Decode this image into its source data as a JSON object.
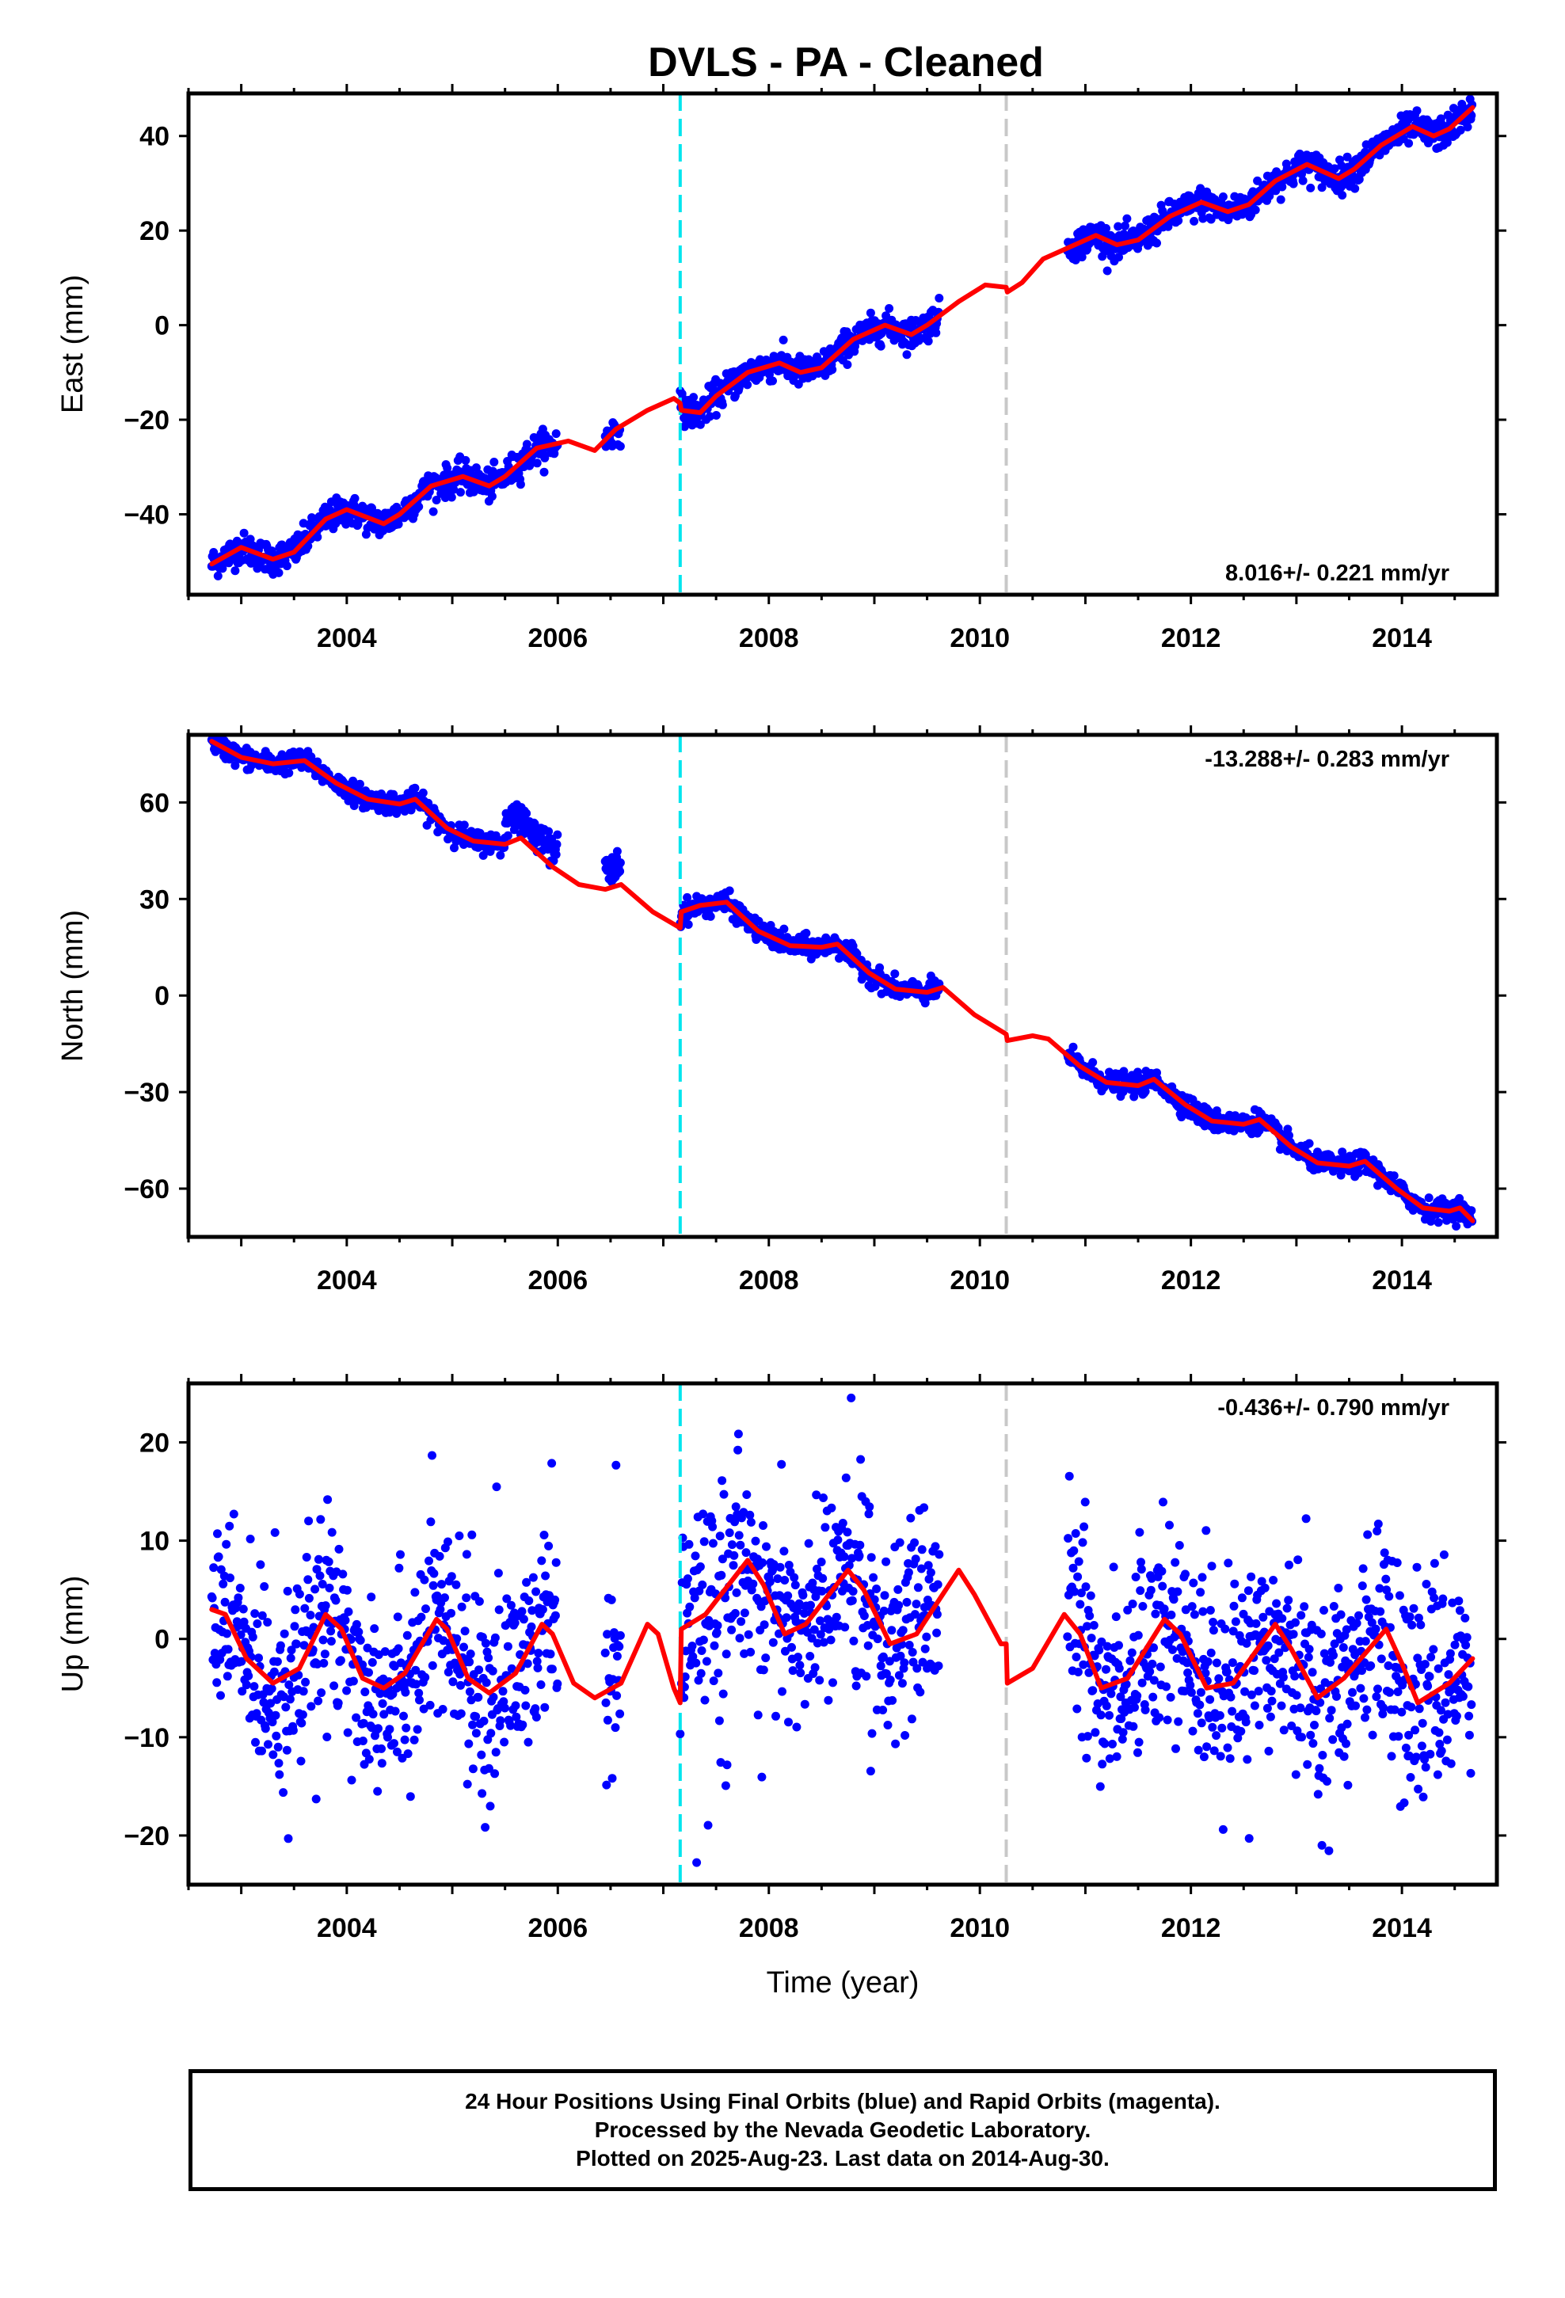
{
  "title": "DVLS  - PA - Cleaned",
  "footer": {
    "line1": "24 Hour Positions Using Final Orbits (blue) and Rapid Orbits (magenta).",
    "line2": "Processed by the Nevada Geodetic Laboratory.",
    "line3": "Plotted on 2025-Aug-23. Last data on 2014-Aug-30."
  },
  "colors": {
    "data": "#0000ff",
    "model": "#ff0000",
    "offset_antenna": "#00e5ee",
    "offset_other": "#c8c8c8"
  },
  "chart_data": [
    {
      "type": "scatter",
      "title": "DVLS  - PA - Cleaned",
      "xlabel": "",
      "ylabel": "East (mm)",
      "xlim": [
        2002.5,
        2014.9
      ],
      "ylim": [
        -57,
        49
      ],
      "xticks": [
        2004,
        2006,
        2008,
        2010,
        2012,
        2014
      ],
      "yticks": [
        -40,
        -20,
        0,
        20,
        40
      ],
      "rate": "8.016+/- 0.221 mm/yr",
      "rate_position": "bottom-right",
      "offsets": [
        {
          "year": 2007.16,
          "kind": "cyan"
        },
        {
          "year": 2010.25,
          "kind": "gray"
        }
      ],
      "data_segments": [
        [
          2002.72,
          2006.0
        ],
        [
          2006.45,
          2006.6
        ],
        [
          2007.16,
          2009.62
        ],
        [
          2010.83,
          2014.67
        ]
      ],
      "model_path": [
        [
          2002.72,
          -50.5
        ],
        [
          2003.0,
          -47.0
        ],
        [
          2003.3,
          -49.5
        ],
        [
          2003.5,
          -48.0
        ],
        [
          2003.8,
          -41.0
        ],
        [
          2004.0,
          -39.0
        ],
        [
          2004.35,
          -42.0
        ],
        [
          2004.5,
          -40.0
        ],
        [
          2004.8,
          -34.0
        ],
        [
          2005.1,
          -32.0
        ],
        [
          2005.35,
          -34.0
        ],
        [
          2005.5,
          -32.0
        ],
        [
          2005.8,
          -26.0
        ],
        [
          2006.1,
          -24.5
        ],
        [
          2006.35,
          -26.5
        ],
        [
          2006.55,
          -22.0
        ],
        [
          2006.85,
          -18.0
        ],
        [
          2007.1,
          -15.5
        ],
        [
          2007.16,
          -16.5
        ],
        [
          2007.17,
          -18.0
        ],
        [
          2007.35,
          -18.5
        ],
        [
          2007.5,
          -15.0
        ],
        [
          2007.8,
          -10.0
        ],
        [
          2008.1,
          -8.0
        ],
        [
          2008.3,
          -10.0
        ],
        [
          2008.5,
          -9.0
        ],
        [
          2008.8,
          -3.0
        ],
        [
          2009.1,
          0.0
        ],
        [
          2009.35,
          -2.0
        ],
        [
          2009.5,
          0.0
        ],
        [
          2009.8,
          5.0
        ],
        [
          2010.05,
          8.5
        ],
        [
          2010.25,
          8.0
        ],
        [
          2010.26,
          7.0
        ],
        [
          2010.4,
          9.0
        ],
        [
          2010.6,
          14.0
        ],
        [
          2010.85,
          16.5
        ],
        [
          2011.1,
          19.0
        ],
        [
          2011.3,
          17.0
        ],
        [
          2011.5,
          18.0
        ],
        [
          2011.8,
          23.0
        ],
        [
          2012.1,
          26.0
        ],
        [
          2012.35,
          24.0
        ],
        [
          2012.55,
          25.5
        ],
        [
          2012.8,
          30.5
        ],
        [
          2013.1,
          34.0
        ],
        [
          2013.4,
          31.0
        ],
        [
          2013.55,
          33.0
        ],
        [
          2013.8,
          38.0
        ],
        [
          2014.1,
          42.0
        ],
        [
          2014.3,
          40.0
        ],
        [
          2014.45,
          41.5
        ],
        [
          2014.67,
          46.0
        ]
      ],
      "series": [
        {
          "name": "",
          "color": "#0000ff"
        }
      ]
    },
    {
      "type": "scatter",
      "xlabel": "",
      "ylabel": "North (mm)",
      "xlim": [
        2002.5,
        2014.9
      ],
      "ylim": [
        -75,
        81
      ],
      "xticks": [
        2004,
        2006,
        2008,
        2010,
        2012,
        2014
      ],
      "yticks": [
        -60,
        -30,
        0,
        30,
        60
      ],
      "rate": "-13.288+/- 0.283 mm/yr",
      "rate_position": "top-right",
      "offsets": [
        {
          "year": 2007.16,
          "kind": "cyan"
        },
        {
          "year": 2010.25,
          "kind": "gray"
        }
      ],
      "data_segments": [
        [
          2002.72,
          2006.0
        ],
        [
          2006.45,
          2006.6
        ],
        [
          2007.16,
          2009.62
        ],
        [
          2010.83,
          2014.67
        ]
      ],
      "model_path": [
        [
          2002.72,
          79.0
        ],
        [
          2003.0,
          74.0
        ],
        [
          2003.3,
          72.0
        ],
        [
          2003.6,
          73.0
        ],
        [
          2003.9,
          66.0
        ],
        [
          2004.2,
          61.0
        ],
        [
          2004.5,
          59.5
        ],
        [
          2004.65,
          61.0
        ],
        [
          2004.95,
          52.0
        ],
        [
          2005.2,
          48.0
        ],
        [
          2005.5,
          47.0
        ],
        [
          2005.65,
          49.0
        ],
        [
          2005.95,
          40.0
        ],
        [
          2006.2,
          34.5
        ],
        [
          2006.45,
          33.0
        ],
        [
          2006.6,
          34.5
        ],
        [
          2006.9,
          26.0
        ],
        [
          2007.16,
          21.0
        ],
        [
          2007.17,
          26.0
        ],
        [
          2007.35,
          28.0
        ],
        [
          2007.6,
          29.0
        ],
        [
          2007.9,
          20.0
        ],
        [
          2008.2,
          15.5
        ],
        [
          2008.5,
          15.0
        ],
        [
          2008.65,
          16.0
        ],
        [
          2008.95,
          7.0
        ],
        [
          2009.2,
          2.0
        ],
        [
          2009.5,
          1.0
        ],
        [
          2009.65,
          2.5
        ],
        [
          2009.95,
          -6.0
        ],
        [
          2010.25,
          -12.0
        ],
        [
          2010.26,
          -14.0
        ],
        [
          2010.5,
          -12.5
        ],
        [
          2010.65,
          -13.5
        ],
        [
          2010.95,
          -22.0
        ],
        [
          2011.2,
          -27.0
        ],
        [
          2011.5,
          -28.0
        ],
        [
          2011.65,
          -26.0
        ],
        [
          2011.95,
          -34.0
        ],
        [
          2012.2,
          -39.0
        ],
        [
          2012.5,
          -40.0
        ],
        [
          2012.65,
          -38.5
        ],
        [
          2012.95,
          -47.0
        ],
        [
          2013.2,
          -52.0
        ],
        [
          2013.5,
          -53.0
        ],
        [
          2013.65,
          -51.5
        ],
        [
          2013.95,
          -60.0
        ],
        [
          2014.2,
          -66.0
        ],
        [
          2014.45,
          -67.0
        ],
        [
          2014.55,
          -66.0
        ],
        [
          2014.67,
          -70.0
        ]
      ],
      "series": [
        {
          "name": "",
          "color": "#0000ff"
        }
      ]
    },
    {
      "type": "scatter",
      "xlabel": "Time (year)",
      "ylabel": "Up (mm)",
      "xlim": [
        2002.5,
        2014.9
      ],
      "ylim": [
        -25,
        26
      ],
      "xticks": [
        2004,
        2006,
        2008,
        2010,
        2012,
        2014
      ],
      "yticks": [
        -20,
        -10,
        0,
        10,
        20
      ],
      "rate": "-0.436+/- 0.790 mm/yr",
      "rate_position": "top-right",
      "offsets": [
        {
          "year": 2007.16,
          "kind": "cyan"
        },
        {
          "year": 2010.25,
          "kind": "gray"
        }
      ],
      "data_segments": [
        [
          2002.72,
          2006.0
        ],
        [
          2006.45,
          2006.6
        ],
        [
          2007.16,
          2009.62
        ],
        [
          2010.83,
          2014.67
        ]
      ],
      "model_path": [
        [
          2002.72,
          3.0
        ],
        [
          2002.85,
          2.5
        ],
        [
          2003.05,
          -2.0
        ],
        [
          2003.3,
          -4.5
        ],
        [
          2003.55,
          -3.0
        ],
        [
          2003.8,
          2.5
        ],
        [
          2003.95,
          1.0
        ],
        [
          2004.15,
          -4.0
        ],
        [
          2004.35,
          -5.0
        ],
        [
          2004.55,
          -3.5
        ],
        [
          2004.85,
          2.0
        ],
        [
          2004.95,
          1.0
        ],
        [
          2005.15,
          -4.0
        ],
        [
          2005.35,
          -5.5
        ],
        [
          2005.6,
          -3.5
        ],
        [
          2005.85,
          1.5
        ],
        [
          2005.95,
          0.5
        ],
        [
          2006.15,
          -4.5
        ],
        [
          2006.35,
          -6.0
        ],
        [
          2006.6,
          -4.5
        ],
        [
          2006.85,
          1.5
        ],
        [
          2006.95,
          0.5
        ],
        [
          2007.1,
          -5.0
        ],
        [
          2007.16,
          -6.5
        ],
        [
          2007.17,
          1.0
        ],
        [
          2007.4,
          2.5
        ],
        [
          2007.8,
          8.0
        ],
        [
          2007.95,
          5.5
        ],
        [
          2008.15,
          0.5
        ],
        [
          2008.35,
          1.5
        ],
        [
          2008.75,
          7.0
        ],
        [
          2008.9,
          5.0
        ],
        [
          2009.15,
          -0.5
        ],
        [
          2009.4,
          0.5
        ],
        [
          2009.8,
          7.0
        ],
        [
          2009.95,
          4.5
        ],
        [
          2010.2,
          -0.5
        ],
        [
          2010.25,
          -0.5
        ],
        [
          2010.26,
          -4.5
        ],
        [
          2010.5,
          -3.0
        ],
        [
          2010.8,
          2.5
        ],
        [
          2010.95,
          0.5
        ],
        [
          2011.15,
          -5.0
        ],
        [
          2011.4,
          -4.0
        ],
        [
          2011.75,
          2.0
        ],
        [
          2011.9,
          0.5
        ],
        [
          2012.15,
          -5.0
        ],
        [
          2012.4,
          -4.5
        ],
        [
          2012.8,
          1.5
        ],
        [
          2012.95,
          -1.0
        ],
        [
          2013.2,
          -6.0
        ],
        [
          2013.45,
          -4.0
        ],
        [
          2013.85,
          1.0
        ],
        [
          2014.0,
          -2.5
        ],
        [
          2014.15,
          -6.5
        ],
        [
          2014.45,
          -4.5
        ],
        [
          2014.67,
          -2.0
        ]
      ],
      "series": [
        {
          "name": "",
          "color": "#0000ff"
        }
      ]
    }
  ]
}
